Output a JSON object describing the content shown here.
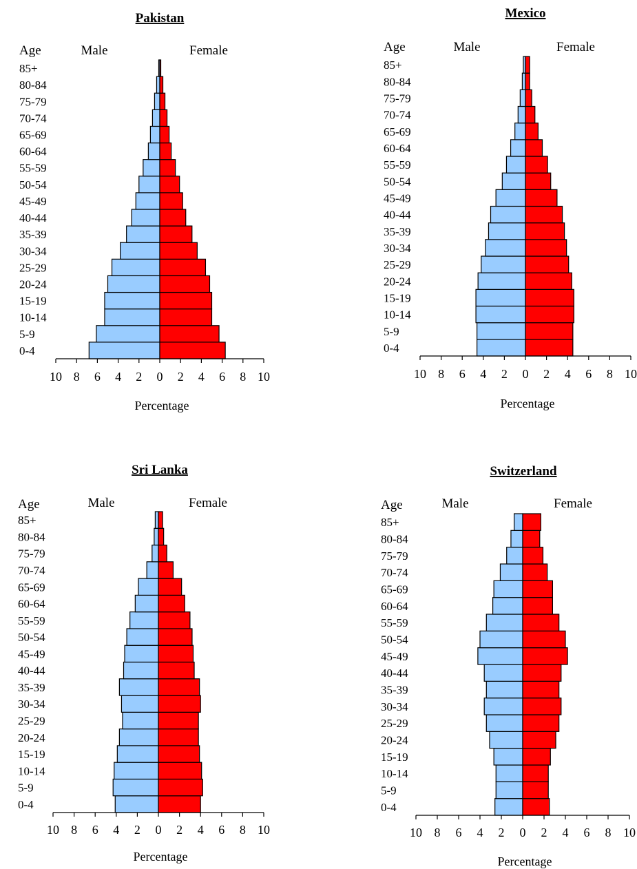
{
  "chart_data": [
    {
      "type": "bar",
      "orientation": "horizontal",
      "subtype": "population-pyramid",
      "title": "Pakistan",
      "age_axis_label": "Age",
      "xlabel": "Percentage",
      "xlim": [
        -10,
        10
      ],
      "ticks": [
        "10",
        "8",
        "6",
        "4",
        "2",
        "0",
        "2",
        "4",
        "6",
        "8",
        "10"
      ],
      "categories": [
        "0-4",
        "5-9",
        "10-14",
        "15-19",
        "20-24",
        "25-29",
        "30-34",
        "35-39",
        "40-44",
        "45-49",
        "50-54",
        "55-59",
        "60-64",
        "65-69",
        "70-74",
        "75-79",
        "80-84",
        "85+"
      ],
      "series": [
        {
          "name": "Male",
          "color": "#99CCFF",
          "values": [
            6.8,
            6.1,
            5.3,
            5.3,
            5.0,
            4.6,
            3.8,
            3.2,
            2.7,
            2.3,
            2.0,
            1.6,
            1.1,
            0.9,
            0.7,
            0.5,
            0.3,
            0.1
          ]
        },
        {
          "name": "Female",
          "color": "#FF0000",
          "values": [
            6.3,
            5.7,
            5.0,
            5.0,
            4.8,
            4.4,
            3.6,
            3.1,
            2.5,
            2.2,
            1.9,
            1.5,
            1.1,
            0.9,
            0.7,
            0.5,
            0.3,
            0.1
          ]
        }
      ]
    },
    {
      "type": "bar",
      "orientation": "horizontal",
      "subtype": "population-pyramid",
      "title": "Mexico",
      "age_axis_label": "Age",
      "xlabel": "Percentage",
      "xlim": [
        -10,
        10
      ],
      "ticks": [
        "10",
        "8",
        "6",
        "4",
        "2",
        "0",
        "2",
        "4",
        "6",
        "8",
        "10"
      ],
      "categories": [
        "0-4",
        "5-9",
        "10-14",
        "15-19",
        "20-24",
        "25-29",
        "30-34",
        "35-39",
        "40-44",
        "45-49",
        "50-54",
        "55-59",
        "60-64",
        "65-69",
        "70-74",
        "75-79",
        "80-84",
        "85+"
      ],
      "series": [
        {
          "name": "Male",
          "color": "#99CCFF",
          "values": [
            4.6,
            4.6,
            4.7,
            4.7,
            4.5,
            4.2,
            3.8,
            3.5,
            3.3,
            2.8,
            2.2,
            1.8,
            1.4,
            1.0,
            0.7,
            0.5,
            0.3,
            0.2
          ]
        },
        {
          "name": "Female",
          "color": "#FF0000",
          "values": [
            4.5,
            4.5,
            4.6,
            4.6,
            4.4,
            4.1,
            3.9,
            3.7,
            3.5,
            3.0,
            2.4,
            2.1,
            1.6,
            1.2,
            0.9,
            0.6,
            0.4,
            0.4
          ]
        }
      ]
    },
    {
      "type": "bar",
      "orientation": "horizontal",
      "subtype": "population-pyramid",
      "title": "Sri Lanka",
      "age_axis_label": "Age",
      "xlabel": "Percentage",
      "xlim": [
        -10,
        10
      ],
      "ticks": [
        "10",
        "8",
        "6",
        "4",
        "2",
        "0",
        "2",
        "4",
        "6",
        "8",
        "10"
      ],
      "categories": [
        "0-4",
        "5-9",
        "10-14",
        "15-19",
        "20-24",
        "25-29",
        "30-34",
        "35-39",
        "40-44",
        "45-49",
        "50-54",
        "55-59",
        "60-64",
        "65-69",
        "70-74",
        "75-79",
        "80-84",
        "85+"
      ],
      "series": [
        {
          "name": "Male",
          "color": "#99CCFF",
          "values": [
            4.1,
            4.3,
            4.2,
            3.9,
            3.7,
            3.4,
            3.5,
            3.7,
            3.3,
            3.2,
            3.0,
            2.7,
            2.2,
            1.9,
            1.1,
            0.6,
            0.4,
            0.3
          ]
        },
        {
          "name": "Female",
          "color": "#FF0000",
          "values": [
            4.0,
            4.2,
            4.1,
            3.9,
            3.8,
            3.8,
            4.0,
            3.9,
            3.4,
            3.3,
            3.2,
            3.0,
            2.5,
            2.2,
            1.4,
            0.8,
            0.5,
            0.4
          ]
        }
      ]
    },
    {
      "type": "bar",
      "orientation": "horizontal",
      "subtype": "population-pyramid",
      "title": "Switzerland",
      "age_axis_label": "Age",
      "xlabel": "Percentage",
      "xlim": [
        -10,
        10
      ],
      "ticks": [
        "10",
        "8",
        "6",
        "4",
        "2",
        "0",
        "2",
        "4",
        "6",
        "8",
        "10"
      ],
      "categories": [
        "0-4",
        "5-9",
        "10-14",
        "15-19",
        "20-24",
        "25-29",
        "30-34",
        "35-39",
        "40-44",
        "45-49",
        "50-54",
        "55-59",
        "60-64",
        "65-69",
        "70-74",
        "75-79",
        "80-84",
        "85+"
      ],
      "series": [
        {
          "name": "Male",
          "color": "#99CCFF",
          "values": [
            2.6,
            2.5,
            2.5,
            2.7,
            3.1,
            3.4,
            3.6,
            3.4,
            3.6,
            4.2,
            4.0,
            3.4,
            2.8,
            2.7,
            2.1,
            1.5,
            1.1,
            0.8
          ]
        },
        {
          "name": "Female",
          "color": "#FF0000",
          "values": [
            2.5,
            2.4,
            2.4,
            2.6,
            3.1,
            3.4,
            3.6,
            3.4,
            3.6,
            4.2,
            4.0,
            3.4,
            2.8,
            2.8,
            2.3,
            1.9,
            1.6,
            1.7
          ]
        }
      ]
    }
  ]
}
